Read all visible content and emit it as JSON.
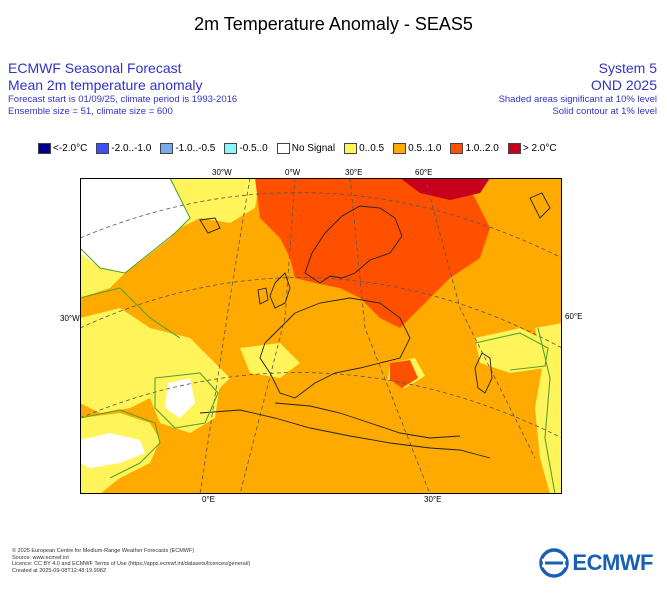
{
  "title": "2m Temperature Anomaly - SEAS5",
  "header_left": {
    "line1": "ECMWF Seasonal Forecast",
    "line2": "Mean 2m temperature anomaly",
    "line3": "Forecast start is 01/09/25, climate period is 1993-2016",
    "line4": "Ensemble size = 51, climate size = 600"
  },
  "header_right": {
    "line1": "System 5",
    "line2": "OND 2025",
    "line3": "Shaded areas significant at 10% level",
    "line4": "Solid contour at 1% level"
  },
  "legend": [
    {
      "label": "<-2.0°C",
      "color": "#00008c"
    },
    {
      "label": "-2.0..-1.0",
      "color": "#3c50ff"
    },
    {
      "label": "-1.0..-0.5",
      "color": "#78aaf0"
    },
    {
      "label": "-0.5..0",
      "color": "#8cf5fa"
    },
    {
      "label": "No Signal",
      "color": "#ffffff"
    },
    {
      "label": "0..0.5",
      "color": "#fff55a"
    },
    {
      "label": "0.5..1.0",
      "color": "#ffaa00"
    },
    {
      "label": "1.0..2.0",
      "color": "#ff5000"
    },
    {
      "label": "> 2.0°C",
      "color": "#c8001e"
    }
  ],
  "grid_labels": {
    "top_30w": "30°W",
    "top_0": "0°W",
    "top_30e": "30°E",
    "top_60e": "60°E",
    "left_30w": "30°W",
    "right_60e": "60°E",
    "bottom_0": "0°E",
    "bottom_30e": "30°E"
  },
  "footer": {
    "line1": "© 2025 European Centre for Medium-Range Weather Forecasts (ECMWF)",
    "line2": "Source: www.ecmwf.int",
    "line3": "Licence: CC BY 4.0 and ECMWF Terms of Use (https://apps.ecmwf.int/datasets/licences/general/)",
    "line4": "Created at 2025-09-08T12:48:19.998Z"
  },
  "logo": {
    "text": "ECMWF"
  },
  "colors": {
    "header_blue": "#3232c8",
    "logo_blue": "#1a5fb4"
  }
}
